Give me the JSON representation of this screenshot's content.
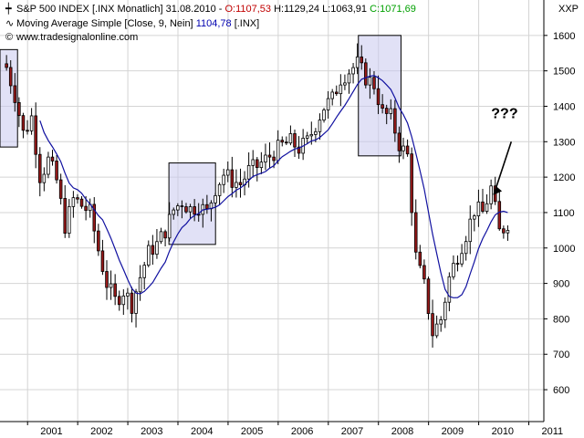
{
  "header": {
    "line1_prefix": "S&P 500 INDEX [.INX  Monatlich] 31.08.2010 - ",
    "open_label": "O:1107,53",
    "high_low": " H:1129,24 L:1063,91 ",
    "close_label": "C:1071,69",
    "line2_prefix": "Moving Average Simple [Close, 9, Nein] ",
    "ma_value": "1104,78",
    "line2_suffix": " [.INX]",
    "line3": "www.tradesignalonline.com",
    "line1_icon": "candlestick-icon",
    "line2_icon": "line-icon",
    "line3_icon": "copyright-icon"
  },
  "corner_label": "XXP",
  "annotation": "???",
  "colors": {
    "candle_up": "#ffffff",
    "candle_down": "#9a1a1a",
    "ma_line": "#1010a0",
    "box_fill": "#c8c8ee",
    "grid": "#d4d4d4"
  },
  "chart_data": {
    "type": "candlestick",
    "y_ticks": [
      600,
      700,
      800,
      900,
      1000,
      1100,
      1200,
      1300,
      1400,
      1500,
      1600
    ],
    "x_ticks": [
      "2001",
      "2002",
      "2003",
      "2004",
      "2005",
      "2006",
      "2007",
      "2008",
      "2009",
      "2010",
      "2011"
    ],
    "ylim": [
      510,
      1700
    ],
    "xlim": [
      2000.45,
      2011.3
    ],
    "grid": true,
    "highlight_boxes": [
      {
        "x0": 2000.45,
        "x1": 2000.8,
        "y0": 1285,
        "y1": 1560
      },
      {
        "x0": 2003.82,
        "x1": 2004.75,
        "y0": 1010,
        "y1": 1240
      },
      {
        "x0": 2007.6,
        "x1": 2008.45,
        "y0": 1260,
        "y1": 1600
      }
    ],
    "arrow": {
      "from": [
        2010.65,
        1300
      ],
      "to": [
        2010.3,
        1150
      ]
    },
    "close_anchors": [
      [
        2000.58,
        1510
      ],
      [
        2000.75,
        1430
      ],
      [
        2000.92,
        1320
      ],
      [
        2001.08,
        1370
      ],
      [
        2001.25,
        1200
      ],
      [
        2001.42,
        1250
      ],
      [
        2001.58,
        1190
      ],
      [
        2001.75,
        1060
      ],
      [
        2001.92,
        1140
      ],
      [
        2002.08,
        1120
      ],
      [
        2002.25,
        1100
      ],
      [
        2002.42,
        990
      ],
      [
        2002.58,
        900
      ],
      [
        2002.75,
        850
      ],
      [
        2002.92,
        880
      ],
      [
        2003.08,
        840
      ],
      [
        2003.25,
        920
      ],
      [
        2003.42,
        990
      ],
      [
        2003.58,
        1010
      ],
      [
        2003.75,
        1050
      ],
      [
        2003.92,
        1110
      ],
      [
        2004.08,
        1130
      ],
      [
        2004.25,
        1110
      ],
      [
        2004.42,
        1120
      ],
      [
        2004.58,
        1100
      ],
      [
        2004.75,
        1170
      ],
      [
        2004.92,
        1210
      ],
      [
        2005.08,
        1190
      ],
      [
        2005.25,
        1180
      ],
      [
        2005.42,
        1220
      ],
      [
        2005.58,
        1230
      ],
      [
        2005.75,
        1250
      ],
      [
        2005.92,
        1270
      ],
      [
        2006.08,
        1290
      ],
      [
        2006.25,
        1300
      ],
      [
        2006.42,
        1280
      ],
      [
        2006.58,
        1300
      ],
      [
        2006.75,
        1350
      ],
      [
        2006.92,
        1400
      ],
      [
        2007.08,
        1420
      ],
      [
        2007.25,
        1480
      ],
      [
        2007.42,
        1500
      ],
      [
        2007.58,
        1520
      ],
      [
        2007.75,
        1480
      ],
      [
        2007.92,
        1460
      ],
      [
        2008.08,
        1380
      ],
      [
        2008.25,
        1370
      ],
      [
        2008.42,
        1290
      ],
      [
        2008.58,
        1260
      ],
      [
        2008.75,
        970
      ],
      [
        2008.92,
        890
      ],
      [
        2009.08,
        760
      ],
      [
        2009.25,
        800
      ],
      [
        2009.42,
        920
      ],
      [
        2009.58,
        980
      ],
      [
        2009.75,
        1040
      ],
      [
        2009.92,
        1110
      ],
      [
        2010.08,
        1100
      ],
      [
        2010.25,
        1170
      ],
      [
        2010.42,
        1040
      ],
      [
        2010.58,
        1072
      ]
    ],
    "ma_period": 9
  }
}
